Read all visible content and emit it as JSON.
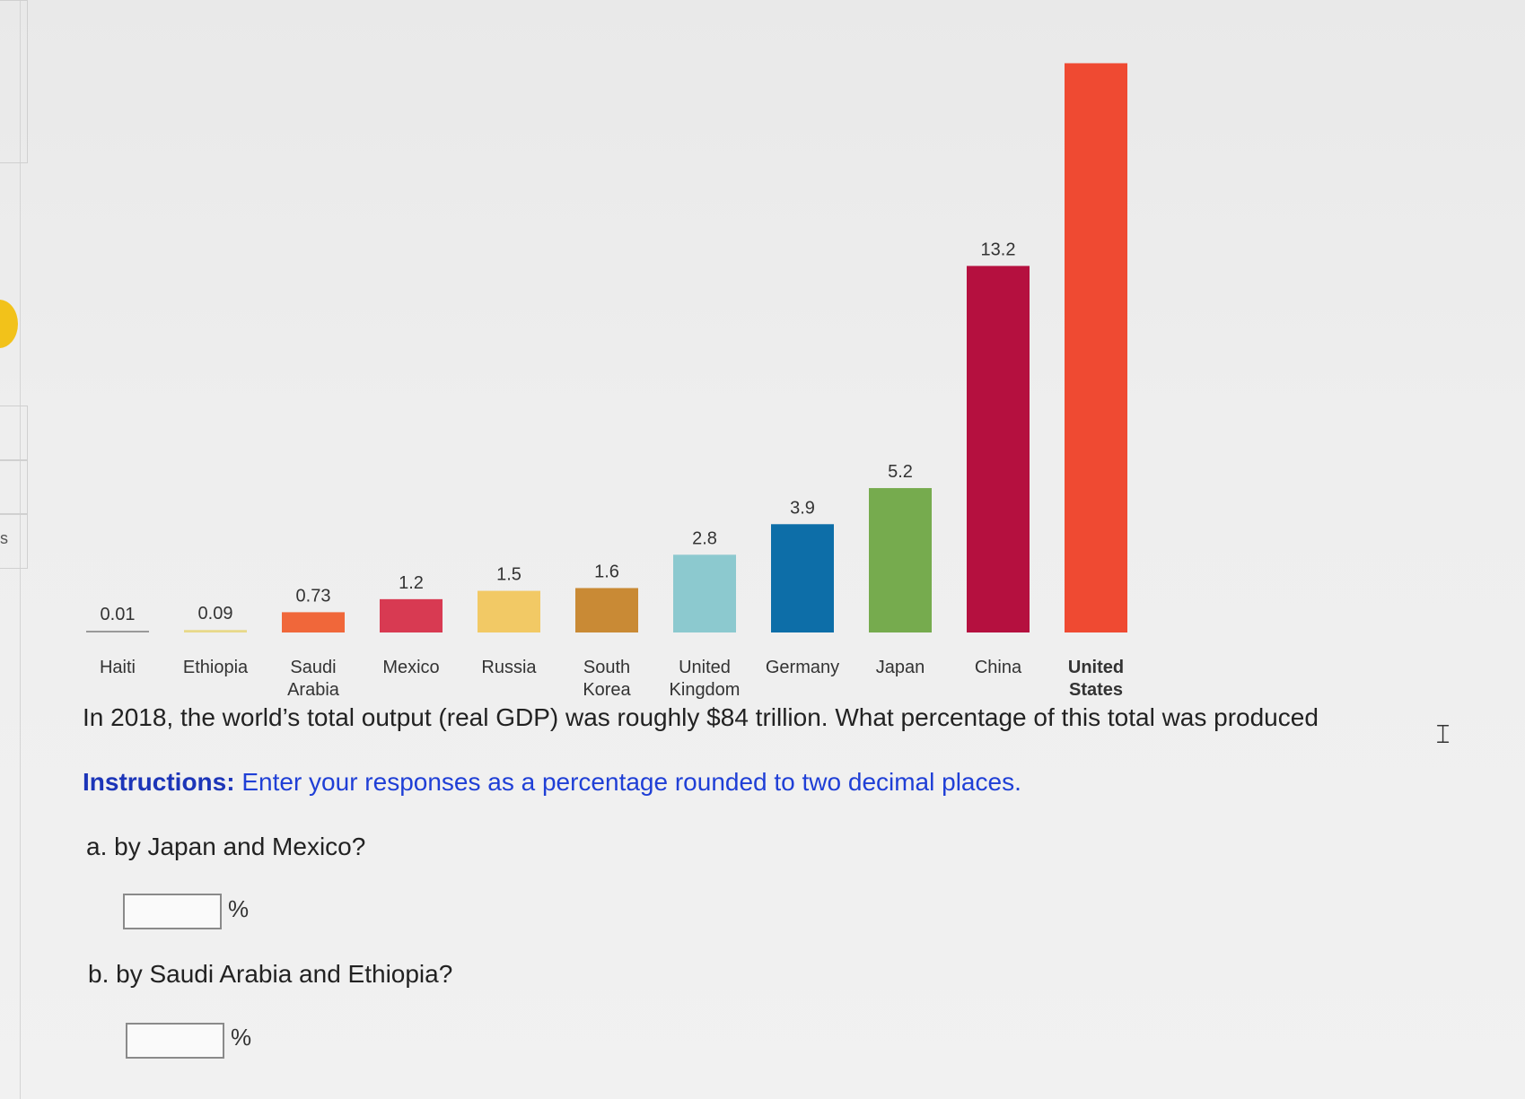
{
  "chart_data": {
    "type": "bar",
    "categories": [
      "Haiti",
      "Ethiopia",
      "Saudi Arabia",
      "Mexico",
      "Russia",
      "South Korea",
      "United Kingdom",
      "Germany",
      "Japan",
      "China",
      "United States"
    ],
    "category_lines": [
      [
        "Haiti"
      ],
      [
        "Ethiopia"
      ],
      [
        "Saudi",
        "Arabia"
      ],
      [
        "Mexico"
      ],
      [
        "Russia"
      ],
      [
        "South",
        "Korea"
      ],
      [
        "United",
        "Kingdom"
      ],
      [
        "Germany"
      ],
      [
        "Japan"
      ],
      [
        "China"
      ],
      [
        "United",
        "States"
      ]
    ],
    "values": [
      0.01,
      0.09,
      0.73,
      1.2,
      1.5,
      1.6,
      2.8,
      3.9,
      5.2,
      13.2,
      20.5
    ],
    "data_labels": [
      "0.01",
      "0.09",
      "0.73",
      "1.2",
      "1.5",
      "1.6",
      "2.8",
      "3.9",
      "5.2",
      "13.2",
      ""
    ],
    "colors": [
      "#9a9a9a",
      "#e8d98a",
      "#f0673a",
      "#d83a52",
      "#f2c965",
      "#c98a35",
      "#8cc9cf",
      "#0d6ea8",
      "#76ab4e",
      "#b5103f",
      "#ef4a32"
    ],
    "bold_labels": [
      false,
      false,
      false,
      false,
      false,
      false,
      false,
      false,
      false,
      false,
      true
    ],
    "ylim": [
      0,
      21
    ]
  },
  "question": {
    "text": "In 2018, the world’s total output (real GDP) was roughly $84 trillion. What percentage of this total was produced",
    "instructions_label": "Instructions:",
    "instructions_text": " Enter your responses as a percentage rounded to two decimal places.",
    "part_a": "a. by Japan and Mexico?",
    "part_b": "b. by Saudi Arabia and Ethiopia?",
    "unit": "%"
  },
  "side": {
    "edge_letter": "s"
  }
}
